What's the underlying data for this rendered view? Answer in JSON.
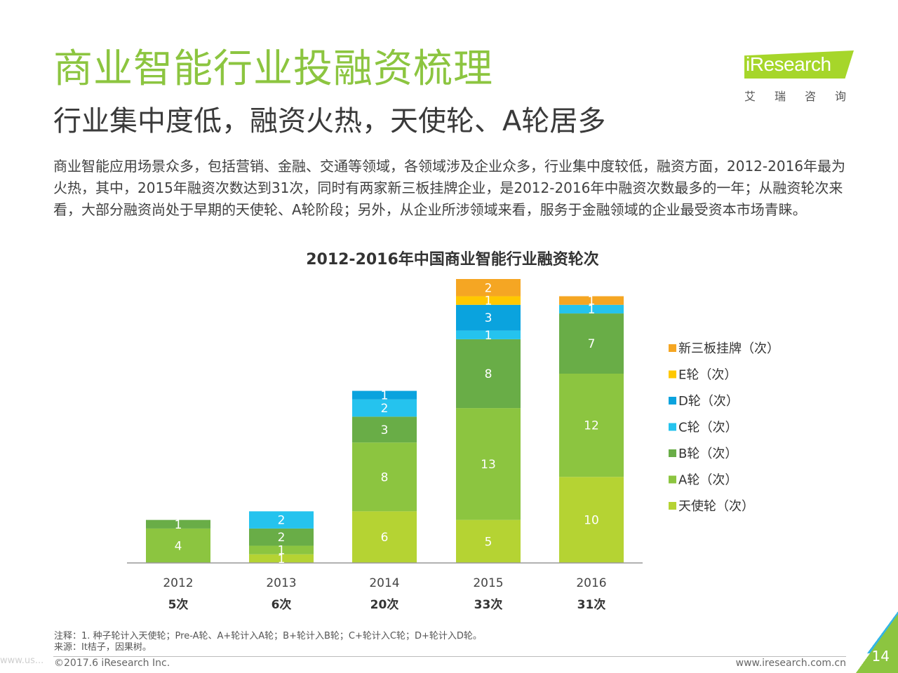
{
  "header": {
    "title": "商业智能行业投融资梳理",
    "subtitle": "行业集中度低，融资火热，天使轮、A轮居多",
    "description": "商业智能应用场景众多，包括营销、金融、交通等领域，各领域涉及企业众多，行业集中度较低，融资方面，2012-2016年最为火热，其中，2015年融资次数达到31次，同时有两家新三板挂牌企业，是2012-2016年中融资次数最多的一年；从融资轮次来看，大部分融资尚处于早期的天使轮、A轮阶段；另外，从企业所涉领域来看，服务于金融领域的企业最受资本市场青睐。"
  },
  "logo": {
    "text": "iResearch",
    "sub": "艾瑞咨询"
  },
  "chart_data": {
    "type": "bar",
    "stacked": true,
    "title": "2012-2016年中国商业智能行业融资轮次",
    "categories": [
      "2012",
      "2013",
      "2014",
      "2015",
      "2016"
    ],
    "totals": [
      "5次",
      "6次",
      "20次",
      "33次",
      "31次"
    ],
    "series": [
      {
        "name": "天使轮（次）",
        "color": "#b5d333",
        "values": [
          0,
          1,
          6,
          5,
          10
        ]
      },
      {
        "name": "A轮（次）",
        "color": "#8cc540",
        "values": [
          4,
          1,
          8,
          13,
          12
        ]
      },
      {
        "name": "B轮（次）",
        "color": "#69ad47",
        "values": [
          1,
          2,
          3,
          8,
          7
        ]
      },
      {
        "name": "C轮（次）",
        "color": "#25c3ee",
        "values": [
          0,
          2,
          2,
          1,
          1
        ]
      },
      {
        "name": "D轮（次）",
        "color": "#0aa3de",
        "values": [
          0,
          0,
          1,
          3,
          0
        ]
      },
      {
        "name": "E轮（次）",
        "color": "#ffc800",
        "values": [
          0,
          0,
          0,
          1,
          0
        ]
      },
      {
        "name": "新三板挂牌（次）",
        "color": "#f5a623",
        "values": [
          0,
          0,
          0,
          2,
          1
        ]
      }
    ],
    "ylim": [
      0,
      33
    ],
    "grid": false,
    "legend": "right"
  },
  "footer": {
    "note": "注释：1. 种子轮计入天使轮；Pre-A轮、A+轮计入A轮；B+轮计入B轮；C+轮计入C轮；D+轮计入D轮。",
    "source": "来源：It桔子，因果树。",
    "copyright": "©2017.6 iResearch Inc.",
    "website": "www.iresearch.com.cn",
    "page": "14",
    "watermark": "www.us..."
  }
}
